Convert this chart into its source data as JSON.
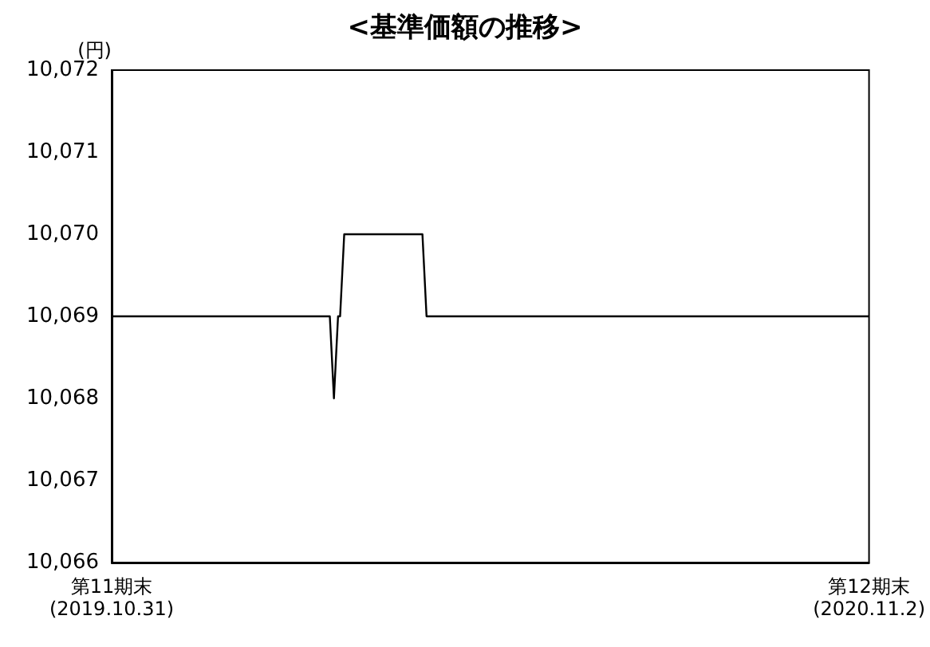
{
  "chart_data": {
    "type": "line",
    "title": "<基準価額の推移>",
    "ylabel": "(円)",
    "x": [
      "2019-10-31",
      "2020-02-14",
      "2020-02-16",
      "2020-02-18",
      "2020-02-19",
      "2020-02-21",
      "2020-03-30",
      "2020-04-01",
      "2020-11-02"
    ],
    "series": [
      {
        "color": "#000000",
        "values": [
          10069,
          10069,
          10068,
          10069,
          10069,
          10070,
          10070,
          10069,
          10069
        ]
      }
    ],
    "xlim": [
      "2019-10-31",
      "2020-11-02"
    ],
    "xticks": [
      {
        "value": "2019-10-31",
        "label": "第11期末\n(2019.10.31)"
      },
      {
        "value": "2020-11-02",
        "label": "第12期末\n(2020.11.2)"
      }
    ],
    "ylim": [
      10066,
      10072
    ],
    "yticks": [
      {
        "value": 10066,
        "label": "10,066"
      },
      {
        "value": 10067,
        "label": "10,067"
      },
      {
        "value": 10068,
        "label": "10,068"
      },
      {
        "value": 10069,
        "label": "10,069"
      },
      {
        "value": 10070,
        "label": "10,070"
      },
      {
        "value": 10071,
        "label": "10,071"
      },
      {
        "value": 10072,
        "label": "10,072"
      }
    ],
    "grid": false,
    "marker": "none",
    "line_style": "solid"
  }
}
